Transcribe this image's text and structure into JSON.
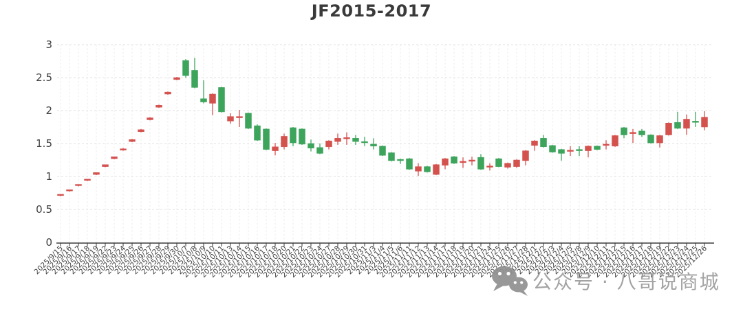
{
  "title": "JF2015-2017",
  "watermark": {
    "icon": "wechat-icon",
    "text": "公众号 · 八哥说商城",
    "color": "#9c9c9c"
  },
  "colors": {
    "up": "#d4524e",
    "down": "#3da45c",
    "axis": "#3a3a3a",
    "grid": "#e3e6e3"
  },
  "chart_data": {
    "type": "candlestick",
    "title": "JF2015-2017",
    "xlabel": "",
    "ylabel": "",
    "ylim": [
      0,
      3
    ],
    "yticks": [
      0,
      0.5,
      1,
      1.5,
      2,
      2.5,
      3
    ],
    "ytick_labels": [
      "0",
      "0.5",
      "1",
      "1.5",
      "2",
      "2.5",
      "3"
    ],
    "grid": "dashed",
    "legend": "none",
    "x_label_rotation": 45,
    "up_color": "#d4524e",
    "down_color": "#3da45c",
    "candles": [
      {
        "date": "2025/9/15",
        "o": 0.71,
        "h": 0.73,
        "l": 0.7,
        "c": 0.73
      },
      {
        "date": "2025/9/16",
        "o": 0.78,
        "h": 0.8,
        "l": 0.77,
        "c": 0.8
      },
      {
        "date": "2025/9/17",
        "o": 0.86,
        "h": 0.88,
        "l": 0.85,
        "c": 0.88
      },
      {
        "date": "2025/9/18",
        "o": 0.94,
        "h": 0.96,
        "l": 0.93,
        "c": 0.96
      },
      {
        "date": "2025/9/19",
        "o": 1.03,
        "h": 1.06,
        "l": 1.02,
        "c": 1.06
      },
      {
        "date": "2025/9/22",
        "o": 1.15,
        "h": 1.18,
        "l": 1.14,
        "c": 1.18
      },
      {
        "date": "2025/9/23",
        "o": 1.27,
        "h": 1.3,
        "l": 1.26,
        "c": 1.3
      },
      {
        "date": "2025/9/24",
        "o": 1.4,
        "h": 1.43,
        "l": 1.39,
        "c": 1.42
      },
      {
        "date": "2025/9/25",
        "o": 1.53,
        "h": 1.57,
        "l": 1.52,
        "c": 1.56
      },
      {
        "date": "2025/9/26",
        "o": 1.68,
        "h": 1.72,
        "l": 1.67,
        "c": 1.71
      },
      {
        "date": "2025/9/27",
        "o": 1.86,
        "h": 1.9,
        "l": 1.85,
        "c": 1.89
      },
      {
        "date": "2025/9/28",
        "o": 2.05,
        "h": 2.09,
        "l": 2.04,
        "c": 2.08
      },
      {
        "date": "2025/9/29",
        "o": 2.25,
        "h": 2.29,
        "l": 2.24,
        "c": 2.28
      },
      {
        "date": "2025/9/30",
        "o": 2.47,
        "h": 2.51,
        "l": 2.46,
        "c": 2.5
      },
      {
        "date": "2025/10/7",
        "o": 2.76,
        "h": 2.78,
        "l": 2.5,
        "c": 2.53
      },
      {
        "date": "2025/10/8",
        "o": 2.61,
        "h": 2.8,
        "l": 2.34,
        "c": 2.35
      },
      {
        "date": "2025/10/9",
        "o": 2.18,
        "h": 2.46,
        "l": 2.11,
        "c": 2.13
      },
      {
        "date": "2025/10/10",
        "o": 2.11,
        "h": 2.26,
        "l": 1.93,
        "c": 2.25
      },
      {
        "date": "2025/10/11",
        "o": 2.35,
        "h": 2.36,
        "l": 1.97,
        "c": 1.98
      },
      {
        "date": "2025/10/13",
        "o": 1.84,
        "h": 1.96,
        "l": 1.8,
        "c": 1.91
      },
      {
        "date": "2025/10/14",
        "o": 1.89,
        "h": 2.01,
        "l": 1.75,
        "c": 1.91
      },
      {
        "date": "2025/10/15",
        "o": 1.96,
        "h": 1.97,
        "l": 1.72,
        "c": 1.73
      },
      {
        "date": "2025/10/16",
        "o": 1.77,
        "h": 1.79,
        "l": 1.54,
        "c": 1.55
      },
      {
        "date": "2025/10/17",
        "o": 1.72,
        "h": 1.73,
        "l": 1.4,
        "c": 1.41
      },
      {
        "date": "2025/10/18",
        "o": 1.39,
        "h": 1.51,
        "l": 1.32,
        "c": 1.45
      },
      {
        "date": "2025/10/20",
        "o": 1.45,
        "h": 1.65,
        "l": 1.41,
        "c": 1.61
      },
      {
        "date": "2025/10/21",
        "o": 1.74,
        "h": 1.75,
        "l": 1.46,
        "c": 1.51
      },
      {
        "date": "2025/10/22",
        "o": 1.72,
        "h": 1.73,
        "l": 1.48,
        "c": 1.49
      },
      {
        "date": "2025/10/23",
        "o": 1.5,
        "h": 1.56,
        "l": 1.38,
        "c": 1.43
      },
      {
        "date": "2025/10/24",
        "o": 1.44,
        "h": 1.5,
        "l": 1.34,
        "c": 1.35
      },
      {
        "date": "2025/10/27",
        "o": 1.45,
        "h": 1.55,
        "l": 1.41,
        "c": 1.54
      },
      {
        "date": "2025/10/28",
        "o": 1.53,
        "h": 1.65,
        "l": 1.48,
        "c": 1.58
      },
      {
        "date": "2025/10/29",
        "o": 1.58,
        "h": 1.67,
        "l": 1.48,
        "c": 1.59
      },
      {
        "date": "2025/10/30",
        "o": 1.58,
        "h": 1.63,
        "l": 1.48,
        "c": 1.53
      },
      {
        "date": "2025/10/31",
        "o": 1.53,
        "h": 1.6,
        "l": 1.46,
        "c": 1.52
      },
      {
        "date": "2025/11/3",
        "o": 1.49,
        "h": 1.58,
        "l": 1.41,
        "c": 1.46
      },
      {
        "date": "2025/11/4",
        "o": 1.46,
        "h": 1.47,
        "l": 1.31,
        "c": 1.32
      },
      {
        "date": "2025/11/5",
        "o": 1.36,
        "h": 1.37,
        "l": 1.23,
        "c": 1.24
      },
      {
        "date": "2025/11/6",
        "o": 1.26,
        "h": 1.27,
        "l": 1.19,
        "c": 1.24
      },
      {
        "date": "2025/11/11",
        "o": 1.27,
        "h": 1.28,
        "l": 1.1,
        "c": 1.11
      },
      {
        "date": "2025/11/12",
        "o": 1.08,
        "h": 1.2,
        "l": 1.01,
        "c": 1.15
      },
      {
        "date": "2025/11/13",
        "o": 1.15,
        "h": 1.16,
        "l": 1.06,
        "c": 1.07
      },
      {
        "date": "2025/11/14",
        "o": 1.03,
        "h": 1.19,
        "l": 1.02,
        "c": 1.18
      },
      {
        "date": "2025/11/17",
        "o": 1.17,
        "h": 1.28,
        "l": 1.11,
        "c": 1.27
      },
      {
        "date": "2025/11/18",
        "o": 1.3,
        "h": 1.31,
        "l": 1.19,
        "c": 1.2
      },
      {
        "date": "2025/11/19",
        "o": 1.21,
        "h": 1.29,
        "l": 1.13,
        "c": 1.23
      },
      {
        "date": "2025/11/20",
        "o": 1.23,
        "h": 1.3,
        "l": 1.17,
        "c": 1.25
      },
      {
        "date": "2025/11/21",
        "o": 1.29,
        "h": 1.34,
        "l": 1.1,
        "c": 1.11
      },
      {
        "date": "2025/11/24",
        "o": 1.14,
        "h": 1.2,
        "l": 1.09,
        "c": 1.16
      },
      {
        "date": "2025/11/25",
        "o": 1.27,
        "h": 1.28,
        "l": 1.14,
        "c": 1.15
      },
      {
        "date": "2025/11/26",
        "o": 1.14,
        "h": 1.21,
        "l": 1.12,
        "c": 1.2
      },
      {
        "date": "2025/11/27",
        "o": 1.15,
        "h": 1.26,
        "l": 1.13,
        "c": 1.25
      },
      {
        "date": "2025/11/28",
        "o": 1.24,
        "h": 1.4,
        "l": 1.17,
        "c": 1.39
      },
      {
        "date": "2025/12/1",
        "o": 1.47,
        "h": 1.55,
        "l": 1.39,
        "c": 1.54
      },
      {
        "date": "2025/12/2",
        "o": 1.58,
        "h": 1.63,
        "l": 1.44,
        "c": 1.45
      },
      {
        "date": "2025/12/3",
        "o": 1.47,
        "h": 1.48,
        "l": 1.36,
        "c": 1.37
      },
      {
        "date": "2025/12/4",
        "o": 1.41,
        "h": 1.42,
        "l": 1.24,
        "c": 1.35
      },
      {
        "date": "2025/12/5",
        "o": 1.38,
        "h": 1.46,
        "l": 1.31,
        "c": 1.4
      },
      {
        "date": "2025/12/8",
        "o": 1.41,
        "h": 1.46,
        "l": 1.31,
        "c": 1.39
      },
      {
        "date": "2025/12/9",
        "o": 1.39,
        "h": 1.47,
        "l": 1.29,
        "c": 1.46
      },
      {
        "date": "2025/12/10",
        "o": 1.46,
        "h": 1.47,
        "l": 1.4,
        "c": 1.41
      },
      {
        "date": "2025/12/11",
        "o": 1.47,
        "h": 1.55,
        "l": 1.41,
        "c": 1.49
      },
      {
        "date": "2025/12/12",
        "o": 1.46,
        "h": 1.63,
        "l": 1.45,
        "c": 1.62
      },
      {
        "date": "2025/12/15",
        "o": 1.74,
        "h": 1.75,
        "l": 1.58,
        "c": 1.63
      },
      {
        "date": "2025/12/16",
        "o": 1.65,
        "h": 1.72,
        "l": 1.51,
        "c": 1.67
      },
      {
        "date": "2025/12/17",
        "o": 1.69,
        "h": 1.72,
        "l": 1.6,
        "c": 1.63
      },
      {
        "date": "2025/12/18",
        "o": 1.63,
        "h": 1.64,
        "l": 1.5,
        "c": 1.51
      },
      {
        "date": "2025/12/19",
        "o": 1.51,
        "h": 1.63,
        "l": 1.44,
        "c": 1.62
      },
      {
        "date": "2025/12/22",
        "o": 1.63,
        "h": 1.82,
        "l": 1.62,
        "c": 1.81
      },
      {
        "date": "2025/12/23",
        "o": 1.82,
        "h": 1.98,
        "l": 1.72,
        "c": 1.73
      },
      {
        "date": "2025/12/24",
        "o": 1.73,
        "h": 1.94,
        "l": 1.63,
        "c": 1.87
      },
      {
        "date": "2025/12/25",
        "o": 1.84,
        "h": 1.98,
        "l": 1.75,
        "c": 1.82
      },
      {
        "date": "2025/12/26",
        "o": 1.75,
        "h": 1.99,
        "l": 1.7,
        "c": 1.9
      }
    ]
  }
}
